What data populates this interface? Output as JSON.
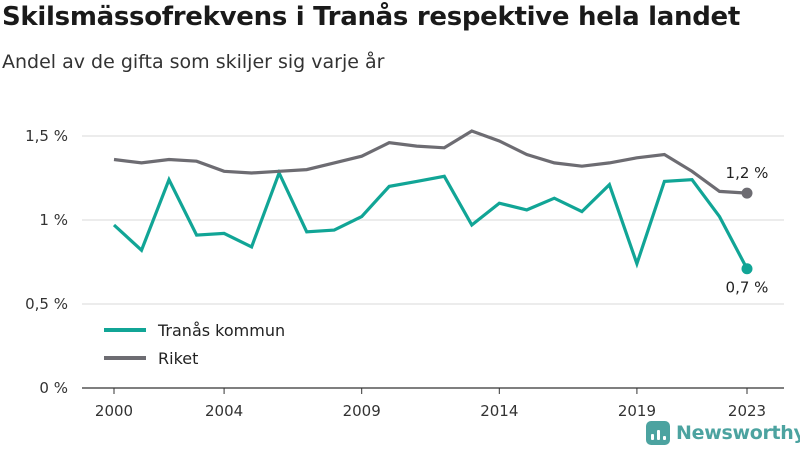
{
  "header": {
    "title": "Skilsmässofrekvens i Tranås respektive hela landet",
    "subtitle": "Andel av de gifta som skiljer sig varje år"
  },
  "brand": {
    "name": "Newsworthy",
    "icon": "bar-chart-icon",
    "color": "#4ca3a0"
  },
  "chart_data": {
    "type": "line",
    "title": "Skilsmässofrekvens i Tranås respektive hela landet",
    "subtitle": "Andel av de gifta som skiljer sig varje år",
    "xlabel": "",
    "ylabel": "",
    "x": [
      2000,
      2001,
      2002,
      2003,
      2004,
      2005,
      2006,
      2007,
      2008,
      2009,
      2010,
      2011,
      2012,
      2013,
      2014,
      2015,
      2016,
      2017,
      2018,
      2019,
      2020,
      2021,
      2022,
      2023
    ],
    "x_ticks": [
      2000,
      2004,
      2009,
      2014,
      2019,
      2023
    ],
    "x_tick_labels": [
      "2000",
      "2004",
      "2009",
      "2014",
      "2019",
      "2023"
    ],
    "xlim": [
      2000,
      2023
    ],
    "y_ticks": [
      0,
      0.5,
      1,
      1.5
    ],
    "y_tick_labels": [
      "0 %",
      "0,5 %",
      "1 %",
      "1,5 %"
    ],
    "ylim": [
      0,
      1.5
    ],
    "grid": "horizontal",
    "legend_position": "bottom-left",
    "series": [
      {
        "name": "Tranås kommun",
        "color": "#11a596",
        "values": [
          0.97,
          0.82,
          1.24,
          0.91,
          0.92,
          0.84,
          1.28,
          0.93,
          0.94,
          1.02,
          1.2,
          1.23,
          1.26,
          0.97,
          1.1,
          1.06,
          1.13,
          1.05,
          1.21,
          0.74,
          1.23,
          1.24,
          1.02,
          0.71
        ],
        "end_label": "0,7 %"
      },
      {
        "name": "Riket",
        "color": "#6d6c72",
        "values": [
          1.36,
          1.34,
          1.36,
          1.35,
          1.29,
          1.28,
          1.29,
          1.3,
          1.34,
          1.38,
          1.46,
          1.44,
          1.43,
          1.53,
          1.47,
          1.39,
          1.34,
          1.32,
          1.34,
          1.37,
          1.39,
          1.29,
          1.17,
          1.16
        ],
        "end_label": "1,2 %"
      }
    ]
  }
}
